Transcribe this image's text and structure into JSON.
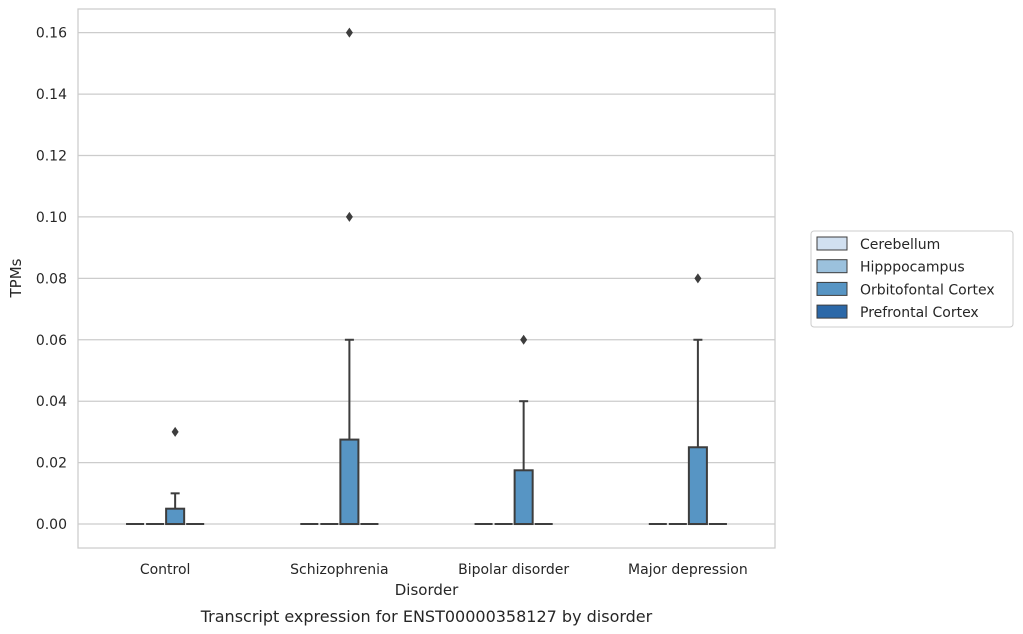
{
  "chart_data": {
    "type": "box",
    "title": "",
    "caption": "Transcript expression for ENST00000358127 by disorder",
    "xlabel": "Disorder",
    "ylabel": "TPMs",
    "ylim": [
      -0.0078,
      0.1677
    ],
    "yticks": [
      "0.00",
      "0.02",
      "0.04",
      "0.06",
      "0.08",
      "0.10",
      "0.12",
      "0.14",
      "0.16"
    ],
    "ytick_values": [
      0,
      0.02,
      0.04,
      0.06,
      0.08,
      0.1,
      0.12,
      0.14,
      0.16
    ],
    "grid": "horizontal",
    "legend_placement": "right",
    "categories": [
      "Control",
      "Schizophrenia",
      "Bipolar disorder",
      "Major depression"
    ],
    "series": [
      {
        "name": "Cerebellum",
        "color": "#d1e0f0",
        "boxes": [
          {
            "q1": 0,
            "median": 0,
            "q3": 0,
            "whisker_low": 0,
            "whisker_high": 0,
            "outliers": []
          },
          {
            "q1": 0,
            "median": 0,
            "q3": 0,
            "whisker_low": 0,
            "whisker_high": 0,
            "outliers": []
          },
          {
            "q1": 0,
            "median": 0,
            "q3": 0,
            "whisker_low": 0,
            "whisker_high": 0,
            "outliers": []
          },
          {
            "q1": 0,
            "median": 0,
            "q3": 0,
            "whisker_low": 0,
            "whisker_high": 0,
            "outliers": []
          }
        ]
      },
      {
        "name": "Hipppocampus",
        "color": "#9bc1dd",
        "boxes": [
          {
            "q1": 0,
            "median": 0,
            "q3": 0,
            "whisker_low": 0,
            "whisker_high": 0,
            "outliers": []
          },
          {
            "q1": 0,
            "median": 0,
            "q3": 0,
            "whisker_low": 0,
            "whisker_high": 0,
            "outliers": []
          },
          {
            "q1": 0,
            "median": 0,
            "q3": 0,
            "whisker_low": 0,
            "whisker_high": 0,
            "outliers": []
          },
          {
            "q1": 0,
            "median": 0,
            "q3": 0,
            "whisker_low": 0,
            "whisker_high": 0,
            "outliers": []
          }
        ]
      },
      {
        "name": "Orbitofontal Cortex",
        "color": "#5795c4",
        "boxes": [
          {
            "q1": 0,
            "median": 0,
            "q3": 0.005,
            "whisker_low": 0,
            "whisker_high": 0.01,
            "outliers": [
              0.03
            ]
          },
          {
            "q1": 0,
            "median": 0,
            "q3": 0.0275,
            "whisker_low": 0,
            "whisker_high": 0.06,
            "outliers": [
              0.1,
              0.16
            ]
          },
          {
            "q1": 0,
            "median": 0,
            "q3": 0.0175,
            "whisker_low": 0,
            "whisker_high": 0.04,
            "outliers": [
              0.06
            ]
          },
          {
            "q1": 0,
            "median": 0,
            "q3": 0.025,
            "whisker_low": 0,
            "whisker_high": 0.06,
            "outliers": [
              0.08
            ]
          }
        ]
      },
      {
        "name": "Prefrontal Cortex",
        "color": "#2b68a8",
        "boxes": [
          {
            "q1": 0,
            "median": 0,
            "q3": 0,
            "whisker_low": 0,
            "whisker_high": 0,
            "outliers": []
          },
          {
            "q1": 0,
            "median": 0,
            "q3": 0,
            "whisker_low": 0,
            "whisker_high": 0,
            "outliers": []
          },
          {
            "q1": 0,
            "median": 0,
            "q3": 0,
            "whisker_low": 0,
            "whisker_high": 0,
            "outliers": []
          },
          {
            "q1": 0,
            "median": 0,
            "q3": 0,
            "whisker_low": 0,
            "whisker_high": 0,
            "outliers": []
          }
        ]
      }
    ]
  }
}
